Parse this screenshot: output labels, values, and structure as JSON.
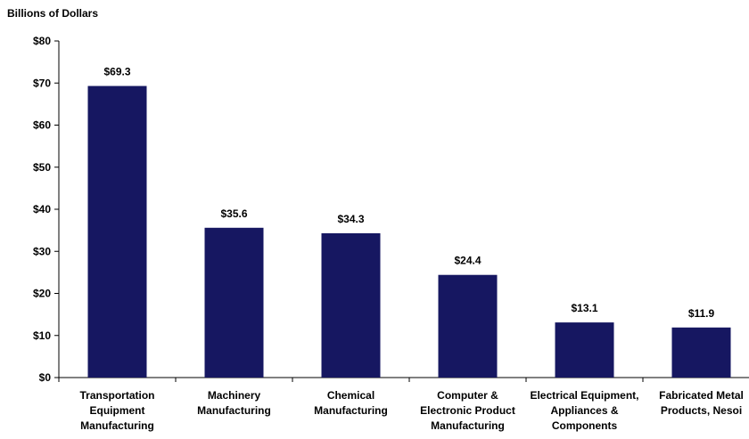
{
  "chart_data": {
    "type": "bar",
    "ylabel": "Billions of Dollars",
    "xlabel": "",
    "categories": [
      [
        "Transportation",
        "Equipment",
        "Manufacturing"
      ],
      [
        "Machinery",
        "Manufacturing"
      ],
      [
        "Chemical",
        "Manufacturing"
      ],
      [
        "Computer &",
        "Electronic Product",
        "Manufacturing"
      ],
      [
        "Electrical Equipment,",
        "Appliances &",
        "Components"
      ],
      [
        "Fabricated Metal",
        "Products, Nesoi"
      ]
    ],
    "values": [
      69.3,
      35.6,
      34.3,
      24.4,
      13.1,
      11.9
    ],
    "data_labels": [
      "$69.3",
      "$35.6",
      "$34.3",
      "$24.4",
      "$13.1",
      "$11.9"
    ],
    "ylim": [
      0,
      80
    ],
    "yticks": [
      0,
      10,
      20,
      30,
      40,
      50,
      60,
      70,
      80
    ],
    "ytick_labels": [
      "$0",
      "$10",
      "$20",
      "$30",
      "$40",
      "$50",
      "$60",
      "$70",
      "$80"
    ],
    "bar_color": "#161761",
    "grid": false,
    "legend": "none"
  }
}
